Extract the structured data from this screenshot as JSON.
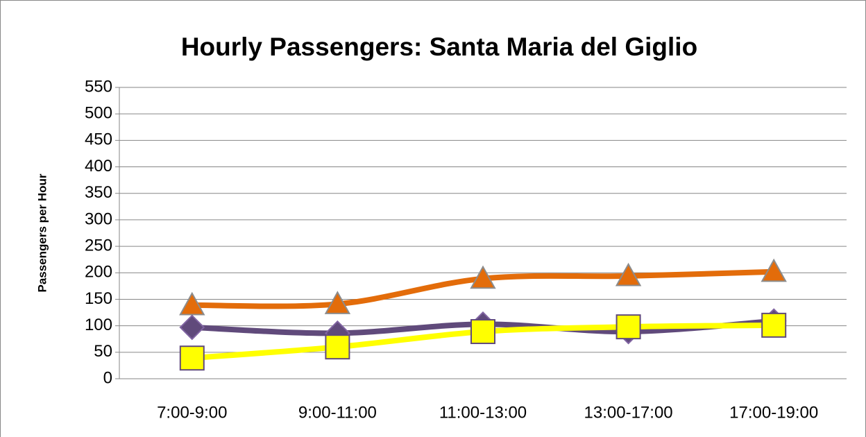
{
  "chart_data": {
    "type": "line",
    "title": "Hourly Passengers: Santa Maria del Giglio",
    "y_label": "Passengers per Hour",
    "categories": [
      "7:00-9:00",
      "9:00-11:00",
      "11:00-13:00",
      "13:00-17:00",
      "17:00-19:00"
    ],
    "series": [
      {
        "color": "#e36c0a",
        "marker": "triangle",
        "values": [
          139,
          141,
          189,
          194,
          202
        ]
      },
      {
        "color": "#604a7b",
        "marker": "diamond",
        "values": [
          97,
          86,
          103,
          89,
          109
        ]
      },
      {
        "color": "#ffff00",
        "marker": "square",
        "values": [
          39,
          60,
          89,
          98,
          101
        ]
      }
    ],
    "ylim": [
      0,
      550
    ],
    "yticks": [
      0,
      50,
      100,
      150,
      200,
      250,
      300,
      350,
      400,
      450,
      500,
      550
    ],
    "grid": true
  }
}
